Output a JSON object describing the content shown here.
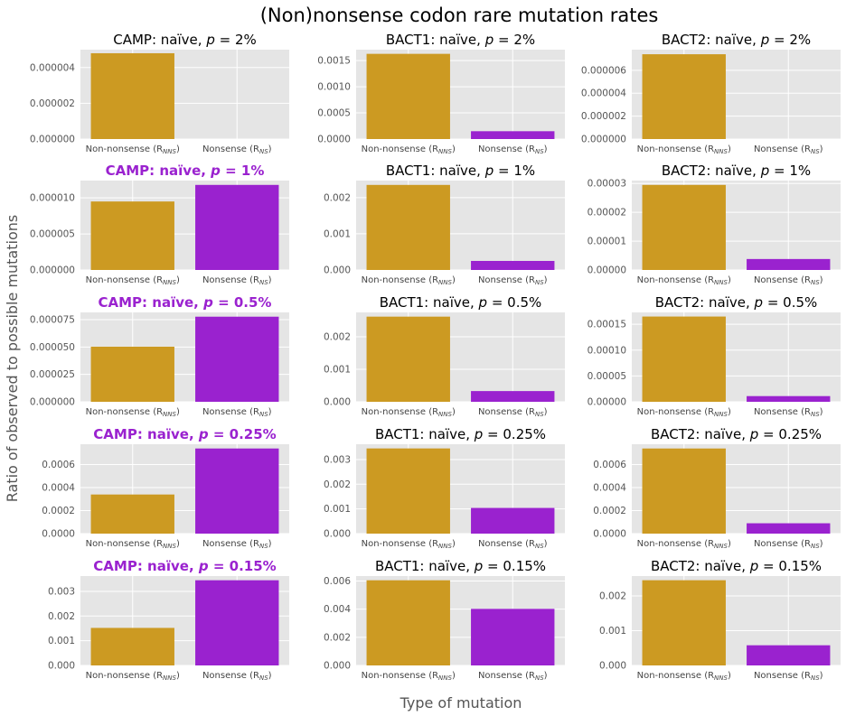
{
  "title": "(Non)nonsense codon rare mutation rates",
  "xlabel": "Type of mutation",
  "ylabel": "Ratio of observed to possible mutations",
  "colors": {
    "non_nonsense": "#cc9a22",
    "nonsense": "#9a22cf",
    "highlight_title": "#9a22cf",
    "panel_bg": "#e5e5e5",
    "grid": "#ffffff"
  },
  "chart_data": [
    {
      "type": "bar",
      "title": "CAMP: naïve, p = 2%",
      "title_parts": [
        "CAMP: naïve, ",
        "p",
        " = 2%"
      ],
      "highlight": false,
      "categories": [
        "Non-nonsense (RNNS)",
        "Nonsense (RNS)"
      ],
      "category_parts": [
        [
          "Non-nonsense (R",
          "NNS",
          ")"
        ],
        [
          "Nonsense (R",
          "NS",
          ")"
        ]
      ],
      "values": [
        4.8e-06,
        0.0
      ],
      "ylim": [
        0,
        5e-06
      ],
      "yticks": [
        "0.000000",
        "0.000002",
        "0.000004"
      ],
      "ytick_values": [
        0,
        2e-06,
        4e-06
      ]
    },
    {
      "type": "bar",
      "title": "BACT1: naïve, p = 2%",
      "title_parts": [
        "BACT1: naïve, ",
        "p",
        " = 2%"
      ],
      "highlight": false,
      "categories": [
        "Non-nonsense (RNNS)",
        "Nonsense (RNS)"
      ],
      "category_parts": [
        [
          "Non-nonsense (R",
          "NNS",
          ")"
        ],
        [
          "Nonsense (R",
          "NS",
          ")"
        ]
      ],
      "values": [
        0.00163,
        0.00015
      ],
      "ylim": [
        0,
        0.00171
      ],
      "yticks": [
        "0.0000",
        "0.0005",
        "0.0010",
        "0.0015"
      ],
      "ytick_values": [
        0,
        0.0005,
        0.001,
        0.0015
      ]
    },
    {
      "type": "bar",
      "title": "BACT2: naïve, p = 2%",
      "title_parts": [
        "BACT2: naïve, ",
        "p",
        " = 2%"
      ],
      "highlight": false,
      "categories": [
        "Non-nonsense (RNNS)",
        "Nonsense (RNS)"
      ],
      "category_parts": [
        [
          "Non-nonsense (R",
          "NNS",
          ")"
        ],
        [
          "Nonsense (R",
          "NS",
          ")"
        ]
      ],
      "values": [
        7.4e-06,
        0.0
      ],
      "ylim": [
        0,
        7.8e-06
      ],
      "yticks": [
        "0.000000",
        "0.000002",
        "0.000004",
        "0.000006"
      ],
      "ytick_values": [
        0,
        2e-06,
        4e-06,
        6e-06
      ]
    },
    {
      "type": "bar",
      "title": "CAMP: naïve, p = 1%",
      "title_parts": [
        "CAMP: naïve, ",
        "p",
        " = 1%"
      ],
      "highlight": true,
      "categories": [
        "Non-nonsense (RNNS)",
        "Nonsense (RNS)"
      ],
      "category_parts": [
        [
          "Non-nonsense (R",
          "NNS",
          ")"
        ],
        [
          "Nonsense (R",
          "NS",
          ")"
        ]
      ],
      "values": [
        9.5e-06,
        1.18e-05
      ],
      "ylim": [
        0,
        1.24e-05
      ],
      "yticks": [
        "0.000000",
        "0.000005",
        "0.000010"
      ],
      "ytick_values": [
        0,
        5e-06,
        1e-05
      ]
    },
    {
      "type": "bar",
      "title": "BACT1: naïve, p = 1%",
      "title_parts": [
        "BACT1: naïve, ",
        "p",
        " = 1%"
      ],
      "highlight": false,
      "categories": [
        "Non-nonsense (RNNS)",
        "Nonsense (RNS)"
      ],
      "category_parts": [
        [
          "Non-nonsense (R",
          "NNS",
          ")"
        ],
        [
          "Nonsense (R",
          "NS",
          ")"
        ]
      ],
      "values": [
        0.00235,
        0.00025
      ],
      "ylim": [
        0,
        0.00247
      ],
      "yticks": [
        "0.000",
        "0.001",
        "0.002"
      ],
      "ytick_values": [
        0,
        0.001,
        0.002
      ]
    },
    {
      "type": "bar",
      "title": "BACT2: naïve, p = 1%",
      "title_parts": [
        "BACT2: naïve, ",
        "p",
        " = 1%"
      ],
      "highlight": false,
      "categories": [
        "Non-nonsense (RNNS)",
        "Nonsense (RNS)"
      ],
      "category_parts": [
        [
          "Non-nonsense (R",
          "NNS",
          ")"
        ],
        [
          "Nonsense (R",
          "NS",
          ")"
        ]
      ],
      "values": [
        2.95e-05,
        3.8e-06
      ],
      "ylim": [
        0,
        3.1e-05
      ],
      "yticks": [
        "0.00000",
        "0.00001",
        "0.00002",
        "0.00003"
      ],
      "ytick_values": [
        0,
        1e-05,
        2e-05,
        3e-05
      ]
    },
    {
      "type": "bar",
      "title": "CAMP: naïve, p = 0.5%",
      "title_parts": [
        "CAMP: naïve, ",
        "p",
        " = 0.5%"
      ],
      "highlight": true,
      "categories": [
        "Non-nonsense (RNNS)",
        "Nonsense (RNS)"
      ],
      "category_parts": [
        [
          "Non-nonsense (R",
          "NNS",
          ")"
        ],
        [
          "Nonsense (R",
          "NS",
          ")"
        ]
      ],
      "values": [
        5.03e-05,
        7.77e-05
      ],
      "ylim": [
        0,
        8.16e-05
      ],
      "yticks": [
        "0.000000",
        "0.000025",
        "0.000050",
        "0.000075"
      ],
      "ytick_values": [
        0,
        2.5e-05,
        5e-05,
        7.5e-05
      ]
    },
    {
      "type": "bar",
      "title": "BACT1: naïve, p = 0.5%",
      "title_parts": [
        "BACT1: naïve, ",
        "p",
        " = 0.5%"
      ],
      "highlight": false,
      "categories": [
        "Non-nonsense (RNNS)",
        "Nonsense (RNS)"
      ],
      "category_parts": [
        [
          "Non-nonsense (R",
          "NNS",
          ")"
        ],
        [
          "Nonsense (R",
          "NS",
          ")"
        ]
      ],
      "values": [
        0.00262,
        0.00033
      ],
      "ylim": [
        0,
        0.00275
      ],
      "yticks": [
        "0.000",
        "0.001",
        "0.002"
      ],
      "ytick_values": [
        0,
        0.001,
        0.002
      ]
    },
    {
      "type": "bar",
      "title": "BACT2: naïve, p = 0.5%",
      "title_parts": [
        "BACT2: naïve, ",
        "p",
        " = 0.5%"
      ],
      "highlight": false,
      "categories": [
        "Non-nonsense (RNNS)",
        "Nonsense (RNS)"
      ],
      "category_parts": [
        [
          "Non-nonsense (R",
          "NNS",
          ")"
        ],
        [
          "Nonsense (R",
          "NS",
          ")"
        ]
      ],
      "values": [
        0.000165,
        1.1e-05
      ],
      "ylim": [
        0,
        0.000173
      ],
      "yticks": [
        "0.00000",
        "0.00005",
        "0.00010",
        "0.00015"
      ],
      "ytick_values": [
        0,
        5e-05,
        0.0001,
        0.00015
      ]
    },
    {
      "type": "bar",
      "title": "CAMP: naïve, p = 0.25%",
      "title_parts": [
        "CAMP: naïve, ",
        "p",
        " = 0.25%"
      ],
      "highlight": true,
      "categories": [
        "Non-nonsense (RNNS)",
        "Nonsense (RNS)"
      ],
      "category_parts": [
        [
          "Non-nonsense (R",
          "NNS",
          ")"
        ],
        [
          "Nonsense (R",
          "NS",
          ")"
        ]
      ],
      "values": [
        0.00034,
        0.00074
      ],
      "ylim": [
        0,
        0.000777
      ],
      "yticks": [
        "0.0000",
        "0.0002",
        "0.0004",
        "0.0006"
      ],
      "ytick_values": [
        0,
        0.0002,
        0.0004,
        0.0006
      ]
    },
    {
      "type": "bar",
      "title": "BACT1: naïve, p = 0.25%",
      "title_parts": [
        "BACT1: naïve, ",
        "p",
        " = 0.25%"
      ],
      "highlight": false,
      "categories": [
        "Non-nonsense (RNNS)",
        "Nonsense (RNS)"
      ],
      "category_parts": [
        [
          "Non-nonsense (R",
          "NNS",
          ")"
        ],
        [
          "Nonsense (R",
          "NS",
          ")"
        ]
      ],
      "values": [
        0.00345,
        0.00104
      ],
      "ylim": [
        0,
        0.00362
      ],
      "yticks": [
        "0.000",
        "0.001",
        "0.002",
        "0.003"
      ],
      "ytick_values": [
        0,
        0.001,
        0.002,
        0.003
      ]
    },
    {
      "type": "bar",
      "title": "BACT2: naïve, p = 0.25%",
      "title_parts": [
        "BACT2: naïve, ",
        "p",
        " = 0.25%"
      ],
      "highlight": false,
      "categories": [
        "Non-nonsense (RNNS)",
        "Nonsense (RNS)"
      ],
      "category_parts": [
        [
          "Non-nonsense (R",
          "NNS",
          ")"
        ],
        [
          "Nonsense (R",
          "NS",
          ")"
        ]
      ],
      "values": [
        0.00074,
        9e-05
      ],
      "ylim": [
        0,
        0.000777
      ],
      "yticks": [
        "0.0000",
        "0.0002",
        "0.0004",
        "0.0006"
      ],
      "ytick_values": [
        0,
        0.0002,
        0.0004,
        0.0006
      ]
    },
    {
      "type": "bar",
      "title": "CAMP: naïve, p = 0.15%",
      "title_parts": [
        "CAMP: naïve, ",
        "p",
        " = 0.15%"
      ],
      "highlight": true,
      "categories": [
        "Non-nonsense (RNNS)",
        "Nonsense (RNS)"
      ],
      "category_parts": [
        [
          "Non-nonsense (R",
          "NNS",
          ")"
        ],
        [
          "Nonsense (R",
          "NS",
          ")"
        ]
      ],
      "values": [
        0.00152,
        0.00345
      ],
      "ylim": [
        0,
        0.00362
      ],
      "yticks": [
        "0.000",
        "0.001",
        "0.002",
        "0.003"
      ],
      "ytick_values": [
        0,
        0.001,
        0.002,
        0.003
      ]
    },
    {
      "type": "bar",
      "title": "BACT1: naïve, p = 0.15%",
      "title_parts": [
        "BACT1: naïve, ",
        "p",
        " = 0.15%"
      ],
      "highlight": false,
      "categories": [
        "Non-nonsense (RNNS)",
        "Nonsense (RNS)"
      ],
      "category_parts": [
        [
          "Non-nonsense (R",
          "NNS",
          ")"
        ],
        [
          "Nonsense (R",
          "NS",
          ")"
        ]
      ],
      "values": [
        0.00605,
        0.00402
      ],
      "ylim": [
        0,
        0.00635
      ],
      "yticks": [
        "0.000",
        "0.002",
        "0.004",
        "0.006"
      ],
      "ytick_values": [
        0,
        0.002,
        0.004,
        0.006
      ]
    },
    {
      "type": "bar",
      "title": "BACT2: naïve, p = 0.15%",
      "title_parts": [
        "BACT2: naïve, ",
        "p",
        " = 0.15%"
      ],
      "highlight": false,
      "categories": [
        "Non-nonsense (RNNS)",
        "Nonsense (RNS)"
      ],
      "category_parts": [
        [
          "Non-nonsense (R",
          "NNS",
          ")"
        ],
        [
          "Nonsense (R",
          "NS",
          ")"
        ]
      ],
      "values": [
        0.00245,
        0.00058
      ],
      "ylim": [
        0,
        0.00257
      ],
      "yticks": [
        "0.000",
        "0.001",
        "0.002"
      ],
      "ytick_values": [
        0,
        0.001,
        0.002
      ]
    }
  ]
}
